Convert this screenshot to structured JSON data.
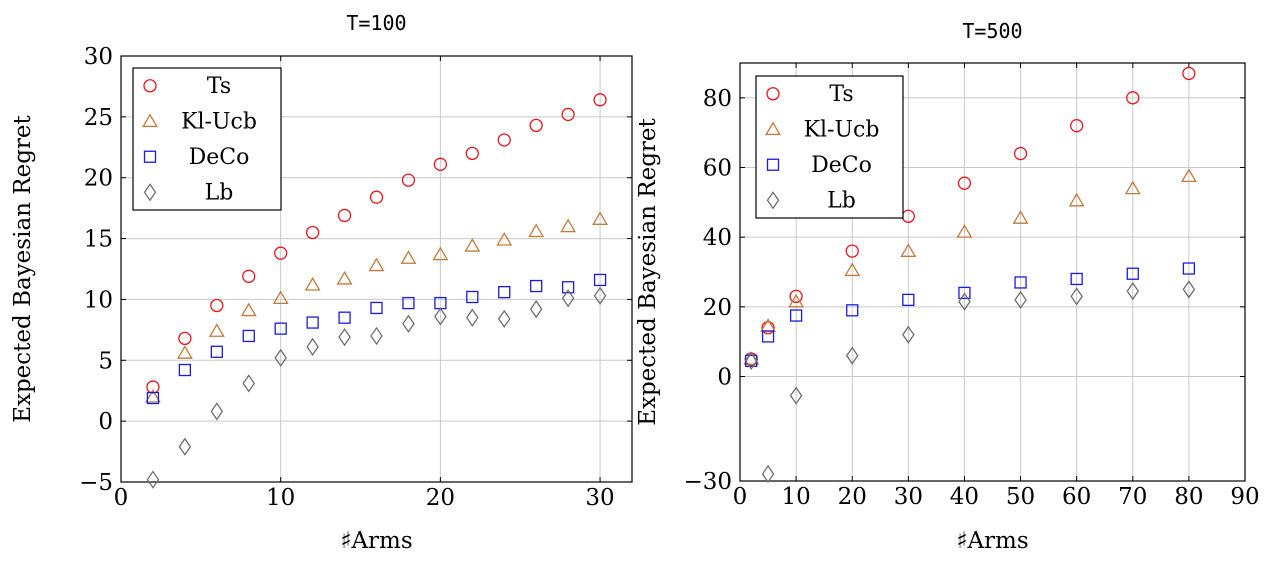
{
  "chart_data": [
    {
      "type": "scatter",
      "title": "T=100",
      "xlabel": "♯Arms",
      "ylabel": "Expected Bayesian Regret",
      "xlim": [
        0,
        32
      ],
      "ylim": [
        -5,
        30
      ],
      "xticks": [
        0,
        10,
        20,
        30
      ],
      "yticks": [
        -5,
        0,
        5,
        10,
        15,
        20,
        25,
        30
      ],
      "grid": true,
      "legend_position": "top-left",
      "series": [
        {
          "name": "Ts",
          "marker": "circle",
          "color": "#e8141b",
          "x": [
            2,
            4,
            6,
            8,
            10,
            12,
            14,
            16,
            18,
            20,
            22,
            24,
            26,
            28,
            30
          ],
          "y": [
            2.8,
            6.8,
            9.5,
            11.9,
            13.8,
            15.5,
            16.9,
            18.4,
            19.8,
            21.1,
            22.0,
            23.1,
            24.3,
            25.2,
            26.4
          ]
        },
        {
          "name": "Kl-Ucb",
          "marker": "triangle",
          "color": "#c07a3c",
          "x": [
            2,
            4,
            6,
            8,
            10,
            12,
            14,
            16,
            18,
            20,
            22,
            24,
            26,
            28,
            30
          ],
          "y": [
            2.0,
            5.6,
            7.4,
            9.1,
            10.1,
            11.2,
            11.7,
            12.8,
            13.4,
            13.7,
            14.4,
            14.9,
            15.6,
            16.0,
            16.6
          ]
        },
        {
          "name": "DeCo",
          "marker": "square",
          "color": "#1a1ae8",
          "x": [
            2,
            4,
            6,
            8,
            10,
            12,
            14,
            16,
            18,
            20,
            22,
            24,
            26,
            28,
            30
          ],
          "y": [
            1.9,
            4.2,
            5.7,
            7.0,
            7.6,
            8.1,
            8.5,
            9.3,
            9.7,
            9.7,
            10.2,
            10.6,
            11.1,
            11.0,
            11.6
          ]
        },
        {
          "name": "Lb",
          "marker": "diamond",
          "color": "#6e6e6e",
          "x": [
            2,
            4,
            6,
            8,
            10,
            12,
            14,
            16,
            18,
            20,
            22,
            24,
            26,
            28,
            30
          ],
          "y": [
            -4.8,
            -2.1,
            0.8,
            3.1,
            5.2,
            6.1,
            6.9,
            7.0,
            8.0,
            8.6,
            8.5,
            8.4,
            9.2,
            10.1,
            10.3
          ]
        }
      ]
    },
    {
      "type": "scatter",
      "title": "T=500",
      "xlabel": "♯Arms",
      "ylabel": "Expected Bayesian Regret",
      "xlim": [
        0,
        90
      ],
      "ylim": [
        -30,
        90
      ],
      "xticks": [
        0,
        10,
        20,
        30,
        40,
        50,
        60,
        70,
        80,
        90
      ],
      "yticks": [
        -30,
        0,
        20,
        40,
        60,
        80
      ],
      "grid": true,
      "legend_position": "top-left",
      "series": [
        {
          "name": "Ts",
          "marker": "circle",
          "color": "#e8141b",
          "x": [
            2,
            5,
            10,
            20,
            30,
            40,
            50,
            60,
            70,
            80
          ],
          "y": [
            5,
            14,
            23,
            36,
            46,
            55.5,
            64,
            72,
            80,
            87
          ]
        },
        {
          "name": "Kl-Ucb",
          "marker": "triangle",
          "color": "#c07a3c",
          "x": [
            2,
            5,
            10,
            20,
            30,
            40,
            50,
            60,
            70,
            80
          ],
          "y": [
            5,
            14.5,
            21.5,
            30.5,
            36,
            41.5,
            45.5,
            50.5,
            54,
            57.5
          ]
        },
        {
          "name": "DeCo",
          "marker": "square",
          "color": "#1a1ae8",
          "x": [
            2,
            5,
            10,
            20,
            30,
            40,
            50,
            60,
            70,
            80
          ],
          "y": [
            4.5,
            11.5,
            17.5,
            19,
            22,
            24,
            27,
            28,
            29.5,
            31
          ]
        },
        {
          "name": "Lb",
          "marker": "diamond",
          "color": "#6e6e6e",
          "x": [
            2,
            5,
            10,
            20,
            30,
            40,
            50,
            60,
            70,
            80
          ],
          "y": [
            4.5,
            -28,
            -5.5,
            6,
            12,
            21.5,
            22,
            23,
            24.5,
            25
          ]
        }
      ]
    }
  ]
}
